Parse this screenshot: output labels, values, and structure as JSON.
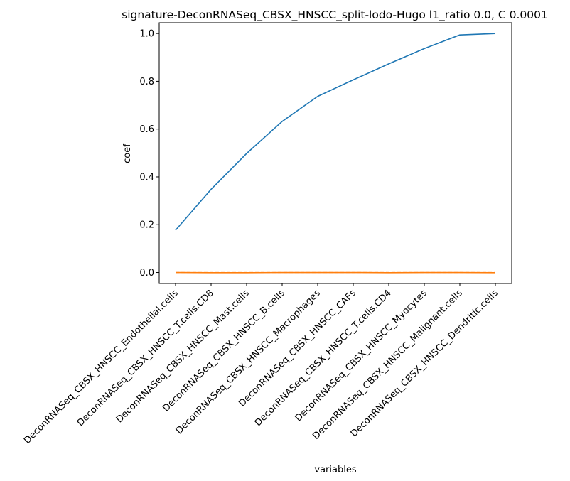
{
  "chart_data": {
    "type": "line",
    "title": "signature-DeconRNASeq_CBSX_HNSCC_split-lodo-Hugo l1_ratio 0.0, C 0.0001",
    "xlabel": "variables",
    "ylabel": "coef",
    "ylim": [
      -0.046,
      1.045
    ],
    "yticks": [
      "0.0",
      "0.2",
      "0.4",
      "0.6",
      "0.8",
      "1.0"
    ],
    "grid": false,
    "categories": [
      "DeconRNASeq_CBSX_HNSCC_Endothelial.cells",
      "DeconRNASeq_CBSX_HNSCC_T.cells.CD8",
      "DeconRNASeq_CBSX_HNSCC_Mast.cells",
      "DeconRNASeq_CBSX_HNSCC_B.cells",
      "DeconRNASeq_CBSX_HNSCC_Macrophages",
      "DeconRNASeq_CBSX_HNSCC_CAFs",
      "DeconRNASeq_CBSX_HNSCC_T.cells.CD4",
      "DeconRNASeq_CBSX_HNSCC_Myocytes",
      "DeconRNASeq_CBSX_HNSCC_Malignant.cells",
      "DeconRNASeq_CBSX_HNSCC_Dendritic.cells"
    ],
    "series": [
      {
        "color": "#1f77b4",
        "dashed": false,
        "values": [
          0.177,
          0.348,
          0.498,
          0.632,
          0.737,
          0.806,
          0.873,
          0.937,
          0.994,
          1.0
        ]
      },
      {
        "color": "#ff7f0e",
        "dashed": false,
        "values": [
          0.0,
          -0.001,
          -0.001,
          0.0,
          0.0,
          0.0,
          -0.001,
          0.0,
          0.0,
          -0.001
        ]
      },
      {
        "color": "#ff7f0e",
        "dashed": true,
        "values": [
          0.0,
          0.0,
          0.0,
          0.0,
          0.0,
          0.0,
          0.0,
          0.0,
          0.0,
          0.0
        ]
      }
    ]
  }
}
